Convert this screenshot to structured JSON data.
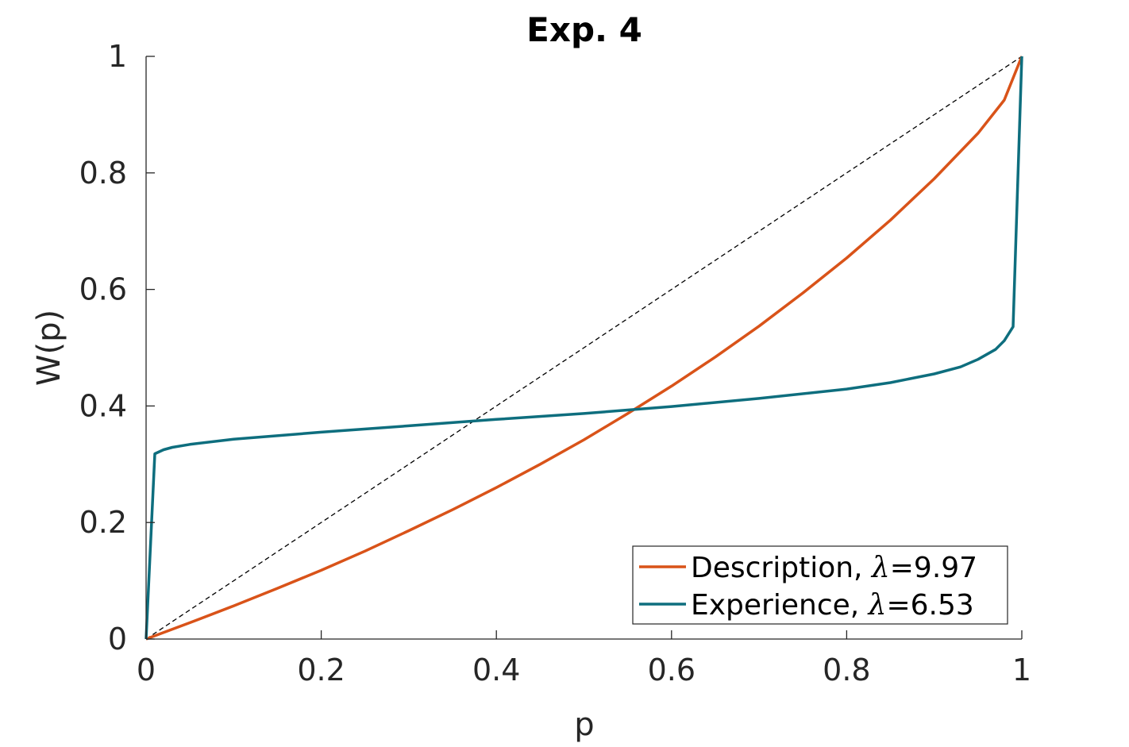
{
  "chart_data": {
    "type": "line",
    "title": "Exp. 4",
    "xlabel": "p",
    "ylabel": "W(p)",
    "xlim": [
      0,
      1
    ],
    "ylim": [
      0,
      1
    ],
    "xticks": [
      0,
      0.2,
      0.4,
      0.6,
      0.8,
      1
    ],
    "yticks": [
      0,
      0.2,
      0.4,
      0.6,
      0.8,
      1
    ],
    "xtick_labels": [
      "0",
      "0.2",
      "0.4",
      "0.6",
      "0.8",
      "1"
    ],
    "ytick_labels": [
      "0",
      "0.2",
      "0.4",
      "0.6",
      "0.8",
      "1"
    ],
    "grid": false,
    "legend_position": "bottom-right",
    "reference_line": {
      "style": "dashed",
      "color": "#000000",
      "points": [
        [
          0,
          0
        ],
        [
          1,
          1
        ]
      ]
    },
    "series": [
      {
        "name_prefix": "Description, ",
        "name_symbol": "λ",
        "name_suffix": "=9.97",
        "color": "#D95319",
        "points": [
          [
            0,
            0
          ],
          [
            0.05,
            0.028
          ],
          [
            0.1,
            0.057
          ],
          [
            0.15,
            0.087
          ],
          [
            0.2,
            0.118
          ],
          [
            0.25,
            0.151
          ],
          [
            0.3,
            0.186
          ],
          [
            0.35,
            0.222
          ],
          [
            0.4,
            0.26
          ],
          [
            0.45,
            0.3
          ],
          [
            0.5,
            0.342
          ],
          [
            0.55,
            0.387
          ],
          [
            0.6,
            0.434
          ],
          [
            0.65,
            0.484
          ],
          [
            0.7,
            0.537
          ],
          [
            0.75,
            0.594
          ],
          [
            0.8,
            0.654
          ],
          [
            0.85,
            0.719
          ],
          [
            0.9,
            0.79
          ],
          [
            0.95,
            0.868
          ],
          [
            0.98,
            0.925
          ],
          [
            1,
            1
          ]
        ]
      },
      {
        "name_prefix": "Experience, ",
        "name_symbol": "λ",
        "name_suffix": "=6.53",
        "color": "#0E6E7E",
        "points": [
          [
            0,
            0
          ],
          [
            0.01,
            0.318
          ],
          [
            0.02,
            0.325
          ],
          [
            0.03,
            0.329
          ],
          [
            0.05,
            0.334
          ],
          [
            0.1,
            0.343
          ],
          [
            0.2,
            0.355
          ],
          [
            0.3,
            0.366
          ],
          [
            0.4,
            0.377
          ],
          [
            0.5,
            0.387
          ],
          [
            0.6,
            0.399
          ],
          [
            0.7,
            0.413
          ],
          [
            0.8,
            0.429
          ],
          [
            0.85,
            0.44
          ],
          [
            0.9,
            0.455
          ],
          [
            0.93,
            0.467
          ],
          [
            0.95,
            0.48
          ],
          [
            0.97,
            0.497
          ],
          [
            0.98,
            0.512
          ],
          [
            0.99,
            0.536
          ],
          [
            1,
            1
          ]
        ]
      }
    ]
  }
}
